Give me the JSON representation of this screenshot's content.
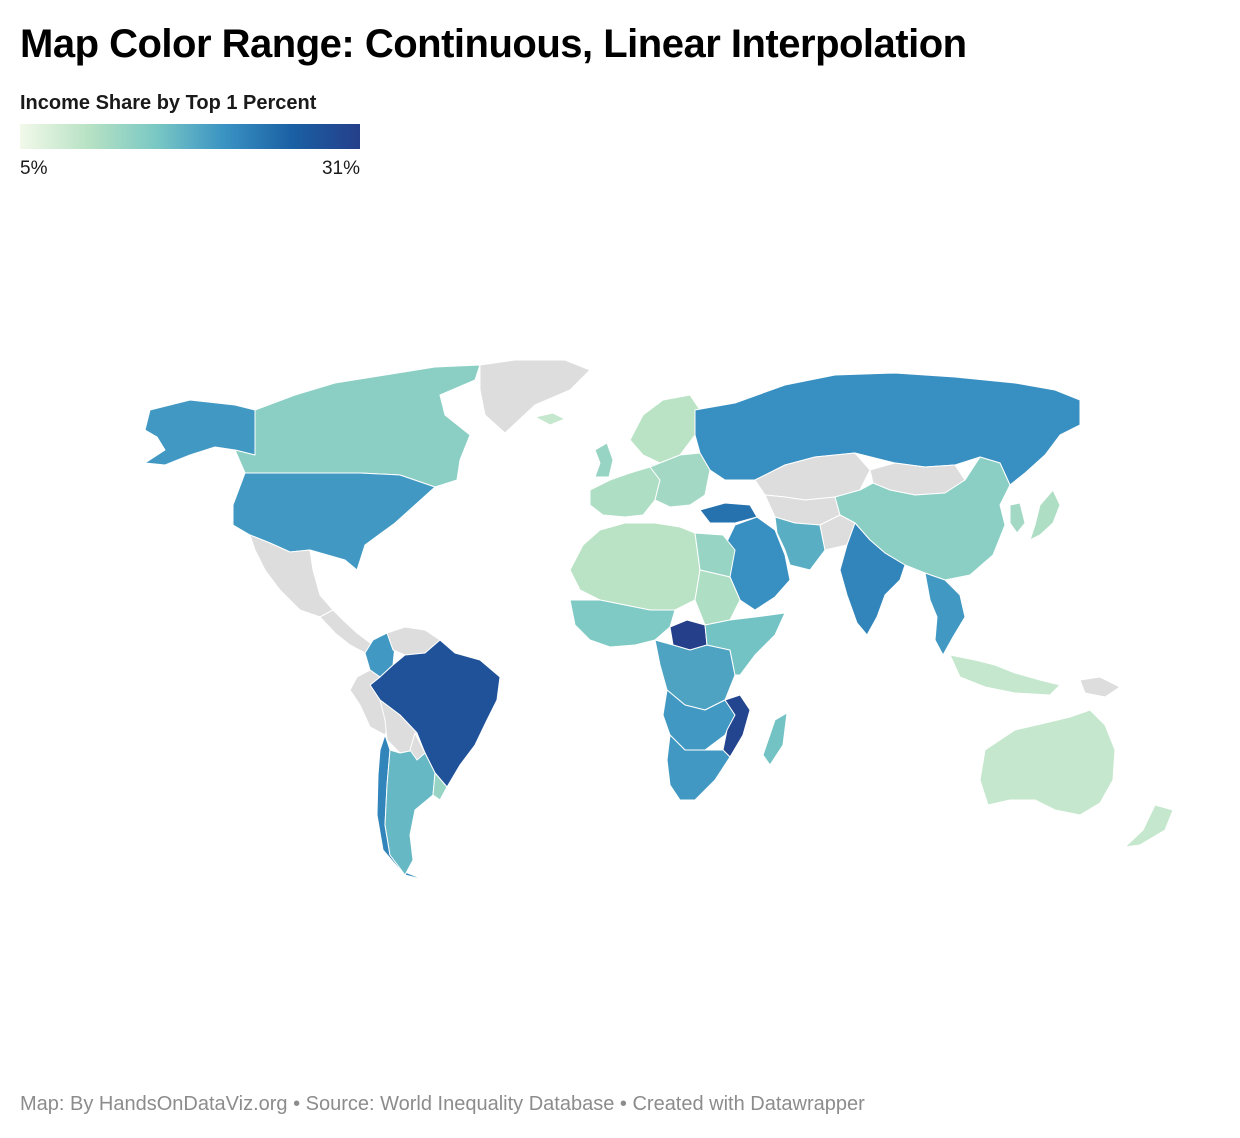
{
  "title": "Map Color Range: Continuous, Linear Interpolation",
  "legend": {
    "title": "Income Share by Top 1 Percent",
    "min_label": "5%",
    "max_label": "31%",
    "colors": [
      "#f2f9ea",
      "#b8e2c4",
      "#7ac8c4",
      "#3a93c3",
      "#1a60a4",
      "#253f8a"
    ],
    "no_data_color": "#dddddd"
  },
  "map": {
    "type": "choropleth",
    "metric": "Income Share by Top 1 Percent",
    "range": [
      5,
      31
    ],
    "regions": [
      {
        "name": "Alaska (USA)",
        "value": 20
      },
      {
        "name": "Canada",
        "value": 14
      },
      {
        "name": "United States",
        "value": 20
      },
      {
        "name": "Greenland",
        "value": null
      },
      {
        "name": "Mexico",
        "value": null
      },
      {
        "name": "Central America",
        "value": null
      },
      {
        "name": "Colombia",
        "value": 20
      },
      {
        "name": "Venezuela",
        "value": null
      },
      {
        "name": "Brazil",
        "value": 28
      },
      {
        "name": "Peru",
        "value": null
      },
      {
        "name": "Bolivia",
        "value": null
      },
      {
        "name": "Chile",
        "value": 22
      },
      {
        "name": "Argentina",
        "value": 17
      },
      {
        "name": "Uruguay",
        "value": 13
      },
      {
        "name": "Paraguay",
        "value": null
      },
      {
        "name": "Iceland",
        "value": 9
      },
      {
        "name": "United Kingdom",
        "value": 13
      },
      {
        "name": "Scandinavia",
        "value": 10
      },
      {
        "name": "Western Europe",
        "value": 11
      },
      {
        "name": "Eastern Europe",
        "value": 12
      },
      {
        "name": "Turkey",
        "value": 24
      },
      {
        "name": "Russia",
        "value": 21
      },
      {
        "name": "Kazakhstan",
        "value": null
      },
      {
        "name": "Central Asia",
        "value": null
      },
      {
        "name": "Mongolia",
        "value": null
      },
      {
        "name": "China",
        "value": 14
      },
      {
        "name": "Korea",
        "value": 12
      },
      {
        "name": "Japan",
        "value": 11
      },
      {
        "name": "Middle East",
        "value": 21
      },
      {
        "name": "Iran",
        "value": 18
      },
      {
        "name": "Afghanistan",
        "value": null
      },
      {
        "name": "India",
        "value": 22
      },
      {
        "name": "Southeast Asia",
        "value": 20
      },
      {
        "name": "Indonesia",
        "value": 9
      },
      {
        "name": "Papua New Guinea",
        "value": null
      },
      {
        "name": "Australia",
        "value": 9
      },
      {
        "name": "New Zealand",
        "value": 9
      },
      {
        "name": "North Africa",
        "value": 10
      },
      {
        "name": "Egypt",
        "value": 13
      },
      {
        "name": "Sudan",
        "value": 11
      },
      {
        "name": "West Africa",
        "value": 15
      },
      {
        "name": "Central African Republic",
        "value": 31
      },
      {
        "name": "Central Africa",
        "value": 19
      },
      {
        "name": "East Africa",
        "value": 16
      },
      {
        "name": "Southern Africa",
        "value": 20
      },
      {
        "name": "Mozambique",
        "value": 30
      },
      {
        "name": "South Africa",
        "value": 20
      },
      {
        "name": "Madagascar",
        "value": 16
      }
    ]
  },
  "credit": "Map: By HandsOnDataViz.org • Source: World Inequality Database • Created with Datawrapper"
}
